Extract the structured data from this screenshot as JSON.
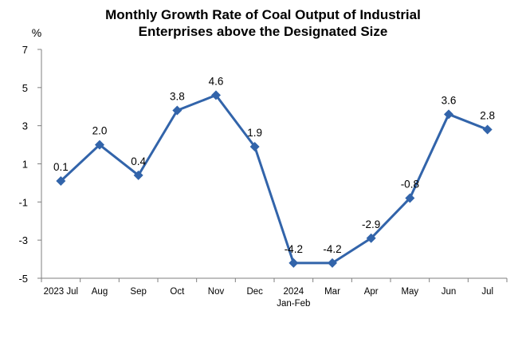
{
  "chart_data": {
    "type": "line",
    "title_lines": [
      "Monthly Growth Rate of Coal Output of Industrial",
      "Enterprises above the Designated Size"
    ],
    "unit_label": "%",
    "categories": [
      [
        "2023 Jul"
      ],
      [
        "Aug"
      ],
      [
        "Sep"
      ],
      [
        "Oct"
      ],
      [
        "Nov"
      ],
      [
        "Dec"
      ],
      [
        "2024",
        "Jan-Feb"
      ],
      [
        "Mar"
      ],
      [
        "Apr"
      ],
      [
        "May"
      ],
      [
        "Jun"
      ],
      [
        "Jul"
      ]
    ],
    "values": [
      0.1,
      2.0,
      0.4,
      3.8,
      4.6,
      1.9,
      -4.2,
      -4.2,
      -2.9,
      -0.8,
      3.6,
      2.8
    ],
    "data_labels": [
      "0.1",
      "2.0",
      "0.4",
      "3.8",
      "4.6",
      "1.9",
      "-4.2",
      "-4.2",
      "-2.9",
      "-0.8",
      "3.6",
      "2.8"
    ],
    "y_ticks": [
      7,
      5,
      3,
      1,
      -1,
      -3,
      -5
    ],
    "ylim": [
      -5,
      7
    ],
    "grid": false,
    "legend": "none",
    "marker": "diamond",
    "line_color": "#3264AA"
  }
}
